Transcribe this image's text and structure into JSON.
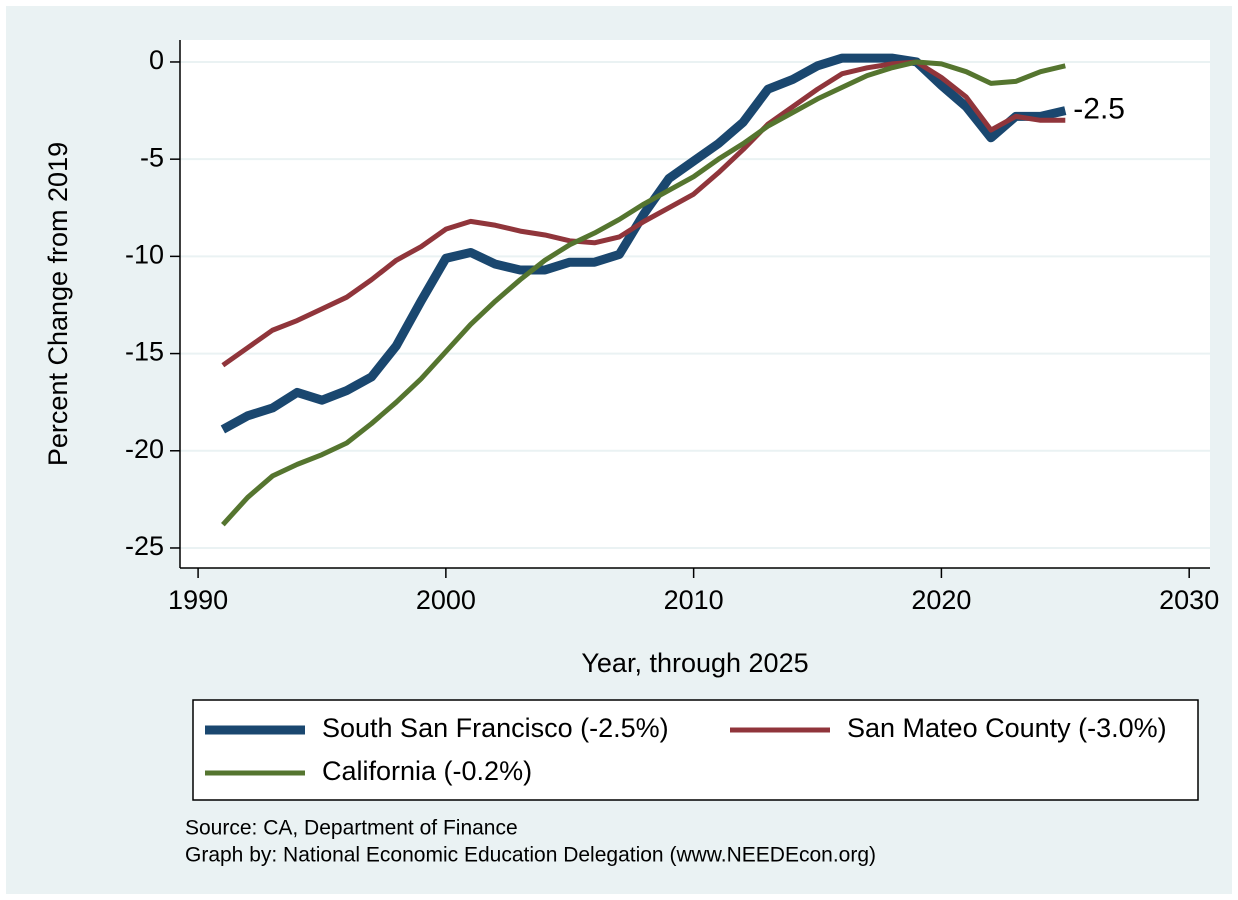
{
  "chart_data": {
    "type": "line",
    "x_label": "Year, through 2025",
    "y_label": "Percent Change from 2019",
    "x": [
      1991,
      1992,
      1993,
      1994,
      1995,
      1996,
      1997,
      1998,
      1999,
      2000,
      2001,
      2002,
      2003,
      2004,
      2005,
      2006,
      2007,
      2008,
      2009,
      2010,
      2011,
      2012,
      2013,
      2014,
      2015,
      2016,
      2017,
      2018,
      2019,
      2020,
      2021,
      2022,
      2023,
      2024,
      2025
    ],
    "series": [
      {
        "name": "South San Francisco (-2.5%)",
        "color": "#1a476f",
        "width": 9,
        "label_last": true,
        "values": [
          -18.9,
          -18.2,
          -17.8,
          -17.0,
          -17.4,
          -16.9,
          -16.2,
          -14.6,
          -12.3,
          -10.1,
          -9.8,
          -10.4,
          -10.7,
          -10.7,
          -10.3,
          -10.3,
          -9.9,
          -7.8,
          -6.0,
          -5.1,
          -4.2,
          -3.1,
          -1.4,
          -0.9,
          -0.2,
          0.2,
          0.2,
          0.2,
          0,
          -1.2,
          -2.3,
          -3.9,
          -2.8,
          -2.8,
          -2.5
        ]
      },
      {
        "name": "San Mateo County (-3.0%)",
        "color": "#90353b",
        "width": 5,
        "values": [
          -15.6,
          -14.7,
          -13.8,
          -13.3,
          -12.7,
          -12.1,
          -11.2,
          -10.2,
          -9.5,
          -8.6,
          -8.2,
          -8.4,
          -8.7,
          -8.9,
          -9.2,
          -9.3,
          -9.0,
          -8.2,
          -7.5,
          -6.8,
          -5.7,
          -4.5,
          -3.2,
          -2.3,
          -1.4,
          -0.6,
          -0.3,
          -0.1,
          0,
          -0.8,
          -1.8,
          -3.5,
          -2.8,
          -3.0,
          -3.0
        ]
      },
      {
        "name": "California (-0.2%)",
        "color": "#55752f",
        "width": 5,
        "values": [
          -23.8,
          -22.4,
          -21.3,
          -20.7,
          -20.2,
          -19.6,
          -18.6,
          -17.5,
          -16.3,
          -14.9,
          -13.5,
          -12.3,
          -11.2,
          -10.2,
          -9.4,
          -8.8,
          -8.1,
          -7.3,
          -6.6,
          -5.9,
          -5.0,
          -4.2,
          -3.3,
          -2.6,
          -1.9,
          -1.3,
          -0.7,
          -0.3,
          0,
          -0.1,
          -0.5,
          -1.1,
          -1.0,
          -0.5,
          -0.2
        ]
      }
    ],
    "xlim": [
      1989.27,
      2030.84
    ],
    "xticks": [
      1990,
      2000,
      2010,
      2020,
      2030
    ],
    "ylim": [
      -26.03,
      1.13
    ],
    "yticks": [
      0,
      -5,
      -10,
      -15,
      -20,
      -25
    ],
    "grid": true,
    "legend": "bottom",
    "notes": [
      "Source: CA, Department of Finance",
      "Graph by: National Economic Education Delegation (www.NEEDEcon.org)"
    ]
  }
}
